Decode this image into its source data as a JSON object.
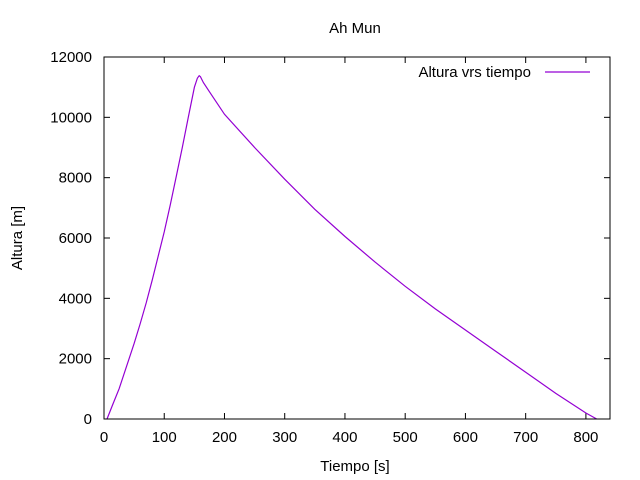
{
  "chart_data": {
    "type": "line",
    "title": "Ah Mun",
    "xlabel": "Tiempo [s]",
    "ylabel": "Altura [m]",
    "xlim": [
      0,
      840
    ],
    "ylim": [
      0,
      12000
    ],
    "xticks": [
      0,
      100,
      200,
      300,
      400,
      500,
      600,
      700,
      800
    ],
    "yticks": [
      0,
      2000,
      4000,
      6000,
      8000,
      10000,
      12000
    ],
    "grid": false,
    "legend_position": "top-right",
    "series": [
      {
        "name": "Altura vrs tiempo",
        "color": "#9400d3",
        "x": [
          5,
          15,
          25,
          40,
          50,
          60,
          70,
          80,
          90,
          100,
          110,
          120,
          130,
          140,
          150,
          155,
          158,
          160,
          165,
          175,
          200,
          250,
          300,
          350,
          400,
          450,
          500,
          550,
          600,
          650,
          700,
          750,
          800,
          818
        ],
        "y": [
          0,
          500,
          1000,
          1900,
          2500,
          3150,
          3850,
          4600,
          5400,
          6200,
          7100,
          8050,
          9000,
          10000,
          11000,
          11300,
          11380,
          11350,
          11150,
          10850,
          10100,
          9000,
          7950,
          6950,
          6050,
          5200,
          4400,
          3650,
          2950,
          2250,
          1550,
          850,
          200,
          0
        ]
      }
    ]
  }
}
